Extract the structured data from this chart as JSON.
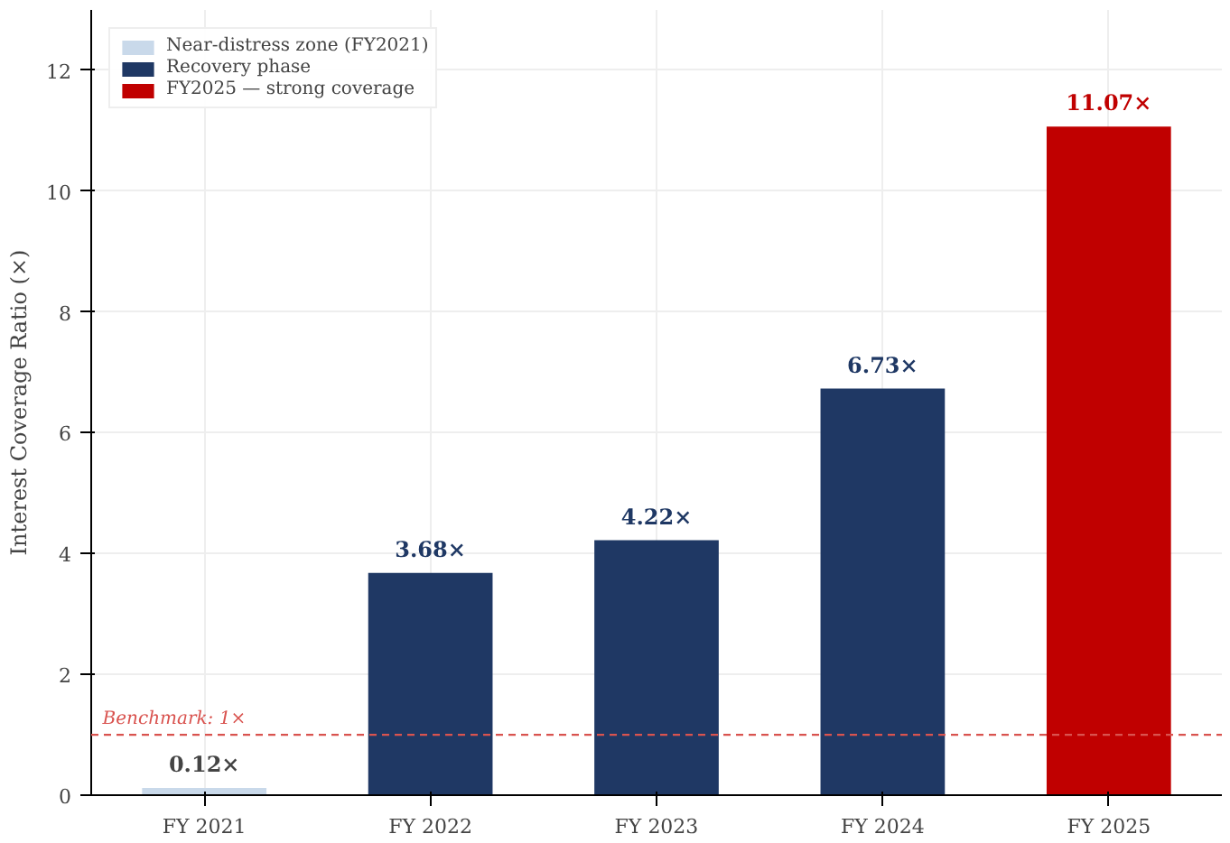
{
  "chart_data": {
    "type": "bar",
    "ylabel": "Interest Coverage Ratio (×)",
    "categories": [
      "FY 2021",
      "FY 2022",
      "FY 2023",
      "FY 2024",
      "FY 2025"
    ],
    "stacked": true,
    "series": [
      {
        "name": "Near-distress zone (FY2021)",
        "color": "#c9d9ea",
        "values": [
          0.12,
          null,
          null,
          null,
          null
        ],
        "value_labels": [
          "0.12×",
          null,
          null,
          null,
          null
        ]
      },
      {
        "name": "Recovery phase",
        "color": "#1f3864",
        "values": [
          null,
          3.68,
          4.22,
          6.73,
          null
        ],
        "value_labels": [
          null,
          "3.68×",
          "4.22×",
          "6.73×",
          null
        ]
      },
      {
        "name": "FY2025 — strong coverage",
        "color": "#c00000",
        "values": [
          null,
          null,
          null,
          null,
          11.07
        ],
        "value_labels": [
          null,
          null,
          null,
          null,
          "11.07×"
        ]
      }
    ],
    "ylim": [
      0,
      13
    ],
    "yticks": [
      0,
      2,
      4,
      6,
      8,
      10,
      12
    ],
    "ref_lines": [
      {
        "axis": "y",
        "value": 1,
        "label": "Benchmark: 1×",
        "color": "#d9534f",
        "line_style": "dashed"
      }
    ],
    "grid": true,
    "legend": "top left"
  }
}
